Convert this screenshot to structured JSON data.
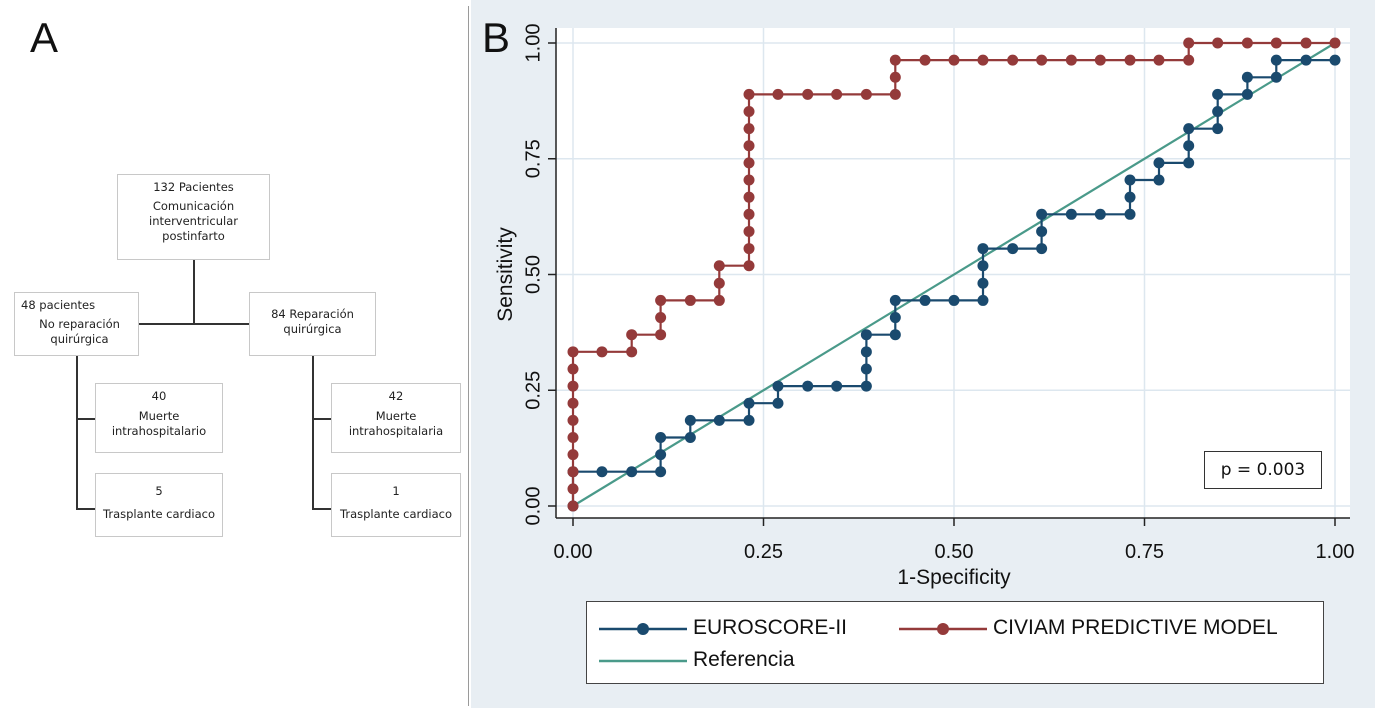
{
  "panel_a": {
    "letter": "A",
    "root": {
      "count": "132 Pacientes",
      "label_lines": [
        "Comunicación",
        "interventricular",
        "postinfarto"
      ]
    },
    "left_branch": {
      "count": "48 pacientes",
      "label_lines": [
        "No reparación",
        "quirúrgica"
      ]
    },
    "right_branch": {
      "count": "84 Reparación",
      "label_lines": [
        "quirúrgica"
      ]
    },
    "left_children": [
      {
        "count": "40",
        "label_lines": [
          "Muerte",
          "intrahospitalario"
        ]
      },
      {
        "count": "5",
        "label_lines": [
          "Trasplante cardiaco"
        ]
      }
    ],
    "right_children": [
      {
        "count": "42",
        "label_lines": [
          "Muerte",
          "intrahospitalaria"
        ]
      },
      {
        "count": "1",
        "label_lines": [
          "Trasplante cardiaco"
        ]
      }
    ]
  },
  "panel_b": {
    "letter": "B",
    "p_value": "p = 0.003",
    "colors": {
      "euroscore": "#1a4a6e",
      "civiam": "#943a3a",
      "reference": "#4a9a8a",
      "grid": "#dde7ef",
      "background": "#e8eef3"
    }
  },
  "chart_data": {
    "type": "line",
    "title": "",
    "xlabel": "1-Specificity",
    "ylabel": "Sensitivity",
    "xlim": [
      0,
      1
    ],
    "ylim": [
      0,
      1
    ],
    "x_ticks": [
      "0.00",
      "0.25",
      "0.50",
      "0.75",
      "1.00"
    ],
    "y_ticks": [
      "0.00",
      "0.25",
      "0.50",
      "0.75",
      "1.00"
    ],
    "grid": true,
    "legend_position": "bottom",
    "series": [
      {
        "name": "EUROSCORE-II",
        "color": "#1a4a6e",
        "markers": true,
        "points": [
          [
            0.0,
            0.0
          ],
          [
            0.0,
            0.074
          ],
          [
            0.038,
            0.074
          ],
          [
            0.077,
            0.074
          ],
          [
            0.115,
            0.074
          ],
          [
            0.115,
            0.111
          ],
          [
            0.115,
            0.148
          ],
          [
            0.154,
            0.148
          ],
          [
            0.154,
            0.185
          ],
          [
            0.192,
            0.185
          ],
          [
            0.231,
            0.185
          ],
          [
            0.231,
            0.222
          ],
          [
            0.269,
            0.222
          ],
          [
            0.269,
            0.259
          ],
          [
            0.308,
            0.259
          ],
          [
            0.346,
            0.259
          ],
          [
            0.385,
            0.259
          ],
          [
            0.385,
            0.296
          ],
          [
            0.385,
            0.333
          ],
          [
            0.385,
            0.37
          ],
          [
            0.423,
            0.37
          ],
          [
            0.423,
            0.407
          ],
          [
            0.423,
            0.444
          ],
          [
            0.462,
            0.444
          ],
          [
            0.5,
            0.444
          ],
          [
            0.538,
            0.444
          ],
          [
            0.538,
            0.481
          ],
          [
            0.538,
            0.519
          ],
          [
            0.538,
            0.556
          ],
          [
            0.577,
            0.556
          ],
          [
            0.615,
            0.556
          ],
          [
            0.615,
            0.593
          ],
          [
            0.615,
            0.63
          ],
          [
            0.654,
            0.63
          ],
          [
            0.692,
            0.63
          ],
          [
            0.731,
            0.63
          ],
          [
            0.731,
            0.667
          ],
          [
            0.731,
            0.704
          ],
          [
            0.769,
            0.704
          ],
          [
            0.769,
            0.741
          ],
          [
            0.808,
            0.741
          ],
          [
            0.808,
            0.778
          ],
          [
            0.808,
            0.815
          ],
          [
            0.846,
            0.815
          ],
          [
            0.846,
            0.852
          ],
          [
            0.846,
            0.889
          ],
          [
            0.885,
            0.889
          ],
          [
            0.885,
            0.926
          ],
          [
            0.923,
            0.926
          ],
          [
            0.923,
            0.963
          ],
          [
            0.962,
            0.963
          ],
          [
            1.0,
            0.963
          ]
        ]
      },
      {
        "name": "CIVIAM PREDICTIVE MODEL",
        "color": "#943a3a",
        "markers": true,
        "points": [
          [
            0.0,
            0.0
          ],
          [
            0.0,
            0.037
          ],
          [
            0.0,
            0.074
          ],
          [
            0.0,
            0.111
          ],
          [
            0.0,
            0.148
          ],
          [
            0.0,
            0.185
          ],
          [
            0.0,
            0.222
          ],
          [
            0.0,
            0.259
          ],
          [
            0.0,
            0.296
          ],
          [
            0.0,
            0.333
          ],
          [
            0.038,
            0.333
          ],
          [
            0.077,
            0.333
          ],
          [
            0.077,
            0.37
          ],
          [
            0.115,
            0.37
          ],
          [
            0.115,
            0.407
          ],
          [
            0.115,
            0.444
          ],
          [
            0.154,
            0.444
          ],
          [
            0.192,
            0.444
          ],
          [
            0.192,
            0.481
          ],
          [
            0.192,
            0.519
          ],
          [
            0.231,
            0.519
          ],
          [
            0.231,
            0.556
          ],
          [
            0.231,
            0.593
          ],
          [
            0.231,
            0.63
          ],
          [
            0.231,
            0.667
          ],
          [
            0.231,
            0.704
          ],
          [
            0.231,
            0.741
          ],
          [
            0.231,
            0.778
          ],
          [
            0.231,
            0.815
          ],
          [
            0.231,
            0.852
          ],
          [
            0.231,
            0.889
          ],
          [
            0.269,
            0.889
          ],
          [
            0.308,
            0.889
          ],
          [
            0.346,
            0.889
          ],
          [
            0.385,
            0.889
          ],
          [
            0.423,
            0.889
          ],
          [
            0.423,
            0.926
          ],
          [
            0.423,
            0.963
          ],
          [
            0.462,
            0.963
          ],
          [
            0.5,
            0.963
          ],
          [
            0.538,
            0.963
          ],
          [
            0.577,
            0.963
          ],
          [
            0.615,
            0.963
          ],
          [
            0.654,
            0.963
          ],
          [
            0.692,
            0.963
          ],
          [
            0.731,
            0.963
          ],
          [
            0.769,
            0.963
          ],
          [
            0.808,
            0.963
          ],
          [
            0.808,
            1.0
          ],
          [
            0.846,
            1.0
          ],
          [
            0.885,
            1.0
          ],
          [
            0.923,
            1.0
          ],
          [
            0.962,
            1.0
          ],
          [
            1.0,
            1.0
          ]
        ]
      },
      {
        "name": "Referencia",
        "color": "#4a9a8a",
        "markers": false,
        "points": [
          [
            0.0,
            0.0
          ],
          [
            1.0,
            1.0
          ]
        ]
      }
    ]
  }
}
